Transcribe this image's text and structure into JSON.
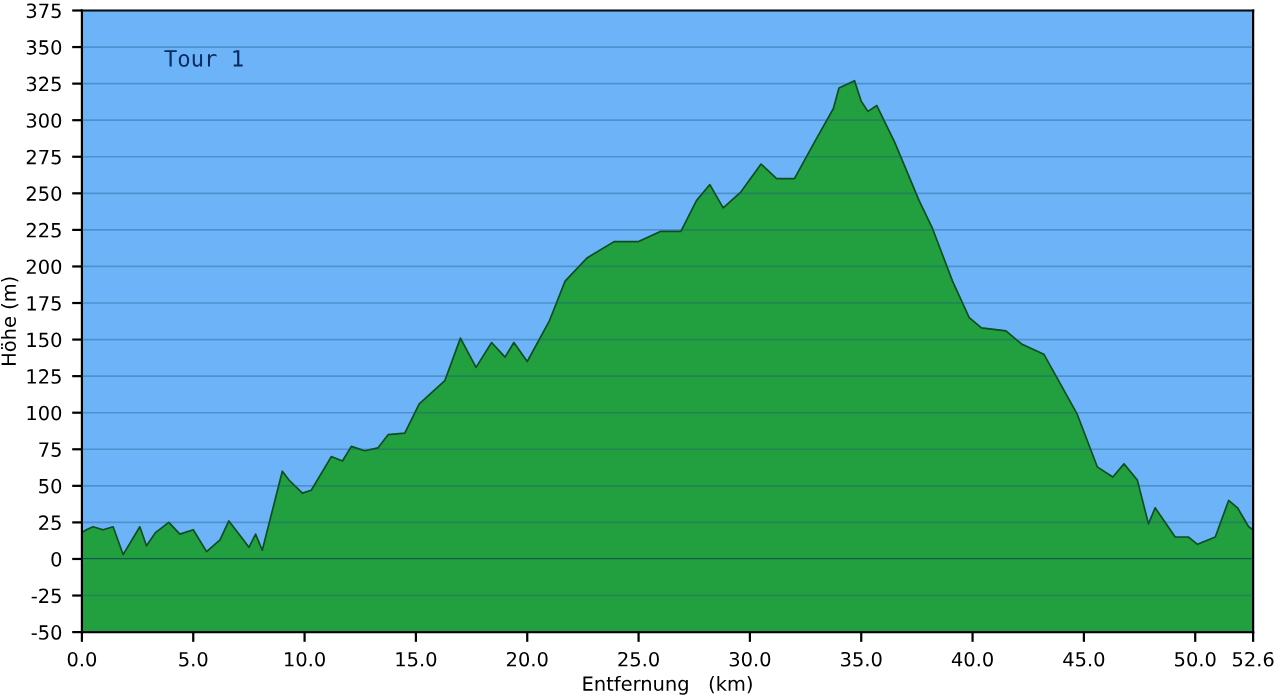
{
  "chart_data": {
    "type": "area",
    "title": "Tour 1",
    "xlabel": "Entfernung   (km)",
    "ylabel": "Höhe (m)",
    "x": [
      0,
      0.2,
      0.5,
      0.95,
      1.4,
      1.85,
      2.6,
      2.9,
      3.3,
      3.9,
      4.4,
      5.0,
      5.6,
      6.2,
      6.6,
      7.05,
      7.5,
      7.8,
      8.1,
      9.0,
      9.3,
      9.9,
      10.3,
      11.2,
      11.7,
      12.1,
      12.7,
      13.3,
      13.75,
      14.5,
      15.15,
      16.3,
      17.0,
      17.7,
      18.4,
      19.0,
      19.4,
      20.0,
      21.0,
      21.7,
      22.7,
      23.9,
      25.0,
      26.0,
      26.9,
      27.6,
      28.2,
      28.8,
      29.6,
      30.5,
      31.2,
      32.0,
      32.9,
      33.75,
      34.0,
      34.7,
      35.0,
      35.3,
      35.7,
      36.5,
      37.6,
      38.2,
      39.1,
      39.85,
      40.4,
      41.5,
      42.2,
      43.2,
      44.7,
      45.6,
      46.3,
      46.8,
      47.4,
      47.9,
      48.2,
      49.1,
      49.7,
      50.1,
      50.9,
      51.5,
      51.9,
      52.4,
      52.6
    ],
    "series": [
      {
        "color": "#22a040",
        "values": [
          18,
          20,
          22,
          20,
          22,
          3,
          22,
          9,
          18,
          25,
          17,
          20,
          5,
          13,
          26,
          17,
          8,
          17,
          6,
          60,
          54,
          45,
          47,
          70,
          67,
          77,
          74,
          76,
          85,
          86,
          106,
          122,
          151,
          131,
          148,
          138,
          148,
          135,
          163,
          190,
          206,
          217,
          217,
          224,
          224,
          245,
          256,
          240,
          251,
          270,
          260,
          260,
          285,
          308,
          322,
          327,
          313,
          306,
          310,
          285,
          245,
          226,
          190,
          165,
          158,
          156,
          147,
          140,
          99,
          63,
          56,
          65,
          54,
          24,
          35,
          15,
          15,
          10,
          15,
          40,
          35,
          22,
          20
        ]
      }
    ],
    "xlim": [
      0,
      52.6
    ],
    "ylim": [
      -50,
      375
    ],
    "xticks": [
      {
        "value": 0,
        "label": "0.0"
      },
      {
        "value": 5,
        "label": "5.0"
      },
      {
        "value": 10,
        "label": "10.0"
      },
      {
        "value": 15,
        "label": "15.0"
      },
      {
        "value": 20,
        "label": "20.0"
      },
      {
        "value": 25,
        "label": "25.0"
      },
      {
        "value": 30,
        "label": "30.0"
      },
      {
        "value": 35,
        "label": "35.0"
      },
      {
        "value": 40,
        "label": "40.0"
      },
      {
        "value": 45,
        "label": "45.0"
      },
      {
        "value": 50,
        "label": "50.0"
      },
      {
        "value": 52.6,
        "label": "52.6"
      }
    ],
    "yticks": [
      -50,
      -25,
      0,
      25,
      50,
      75,
      100,
      125,
      150,
      175,
      200,
      225,
      250,
      275,
      300,
      325,
      350,
      375
    ],
    "bands": [
      {
        "axis": "y",
        "from": -50,
        "to": 0,
        "color": "#22a040"
      }
    ],
    "grid": "y"
  }
}
